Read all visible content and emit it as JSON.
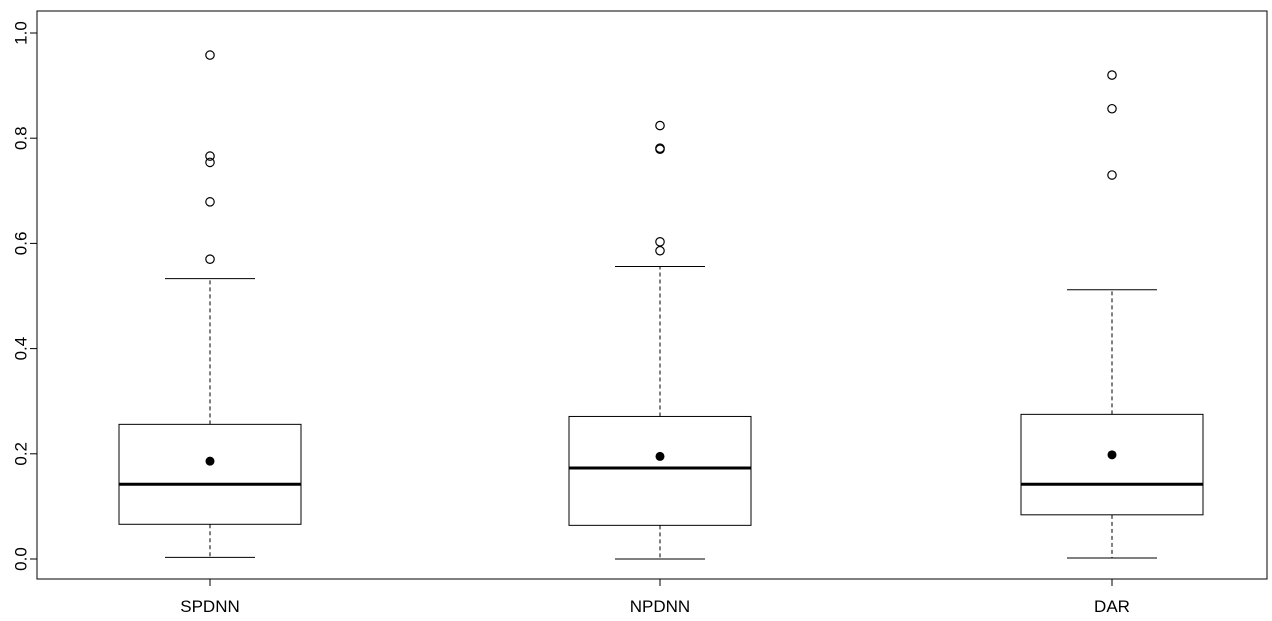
{
  "chart_data": {
    "type": "boxplot",
    "title": "",
    "xlabel": "",
    "ylabel": "",
    "ylim": [
      -0.04,
      1.04
    ],
    "y_ticks": [
      0.0,
      0.2,
      0.4,
      0.6,
      0.8,
      1.0
    ],
    "y_tick_labels": [
      "0.0",
      "0.2",
      "0.4",
      "0.6",
      "0.8",
      "1.0"
    ],
    "grid": false,
    "legend": "none",
    "categories": [
      "SPDNN",
      "NPDNN",
      "DAR"
    ],
    "boxes": [
      {
        "name": "SPDNN",
        "whisker_low": 0.003,
        "q1": 0.066,
        "median": 0.142,
        "q3": 0.256,
        "whisker_high": 0.533,
        "mean": 0.186,
        "outliers": [
          0.57,
          0.679,
          0.754,
          0.766,
          0.958
        ]
      },
      {
        "name": "NPDNN",
        "whisker_low": 0.0,
        "q1": 0.064,
        "median": 0.173,
        "q3": 0.271,
        "whisker_high": 0.556,
        "mean": 0.195,
        "outliers": [
          0.586,
          0.603,
          0.779,
          0.781,
          0.824
        ]
      },
      {
        "name": "DAR",
        "whisker_low": 0.002,
        "q1": 0.084,
        "median": 0.142,
        "q3": 0.275,
        "whisker_high": 0.512,
        "mean": 0.198,
        "outliers": [
          0.73,
          0.856,
          0.92
        ]
      }
    ],
    "colors": {
      "stroke": "#000000",
      "background": "#ffffff"
    }
  }
}
